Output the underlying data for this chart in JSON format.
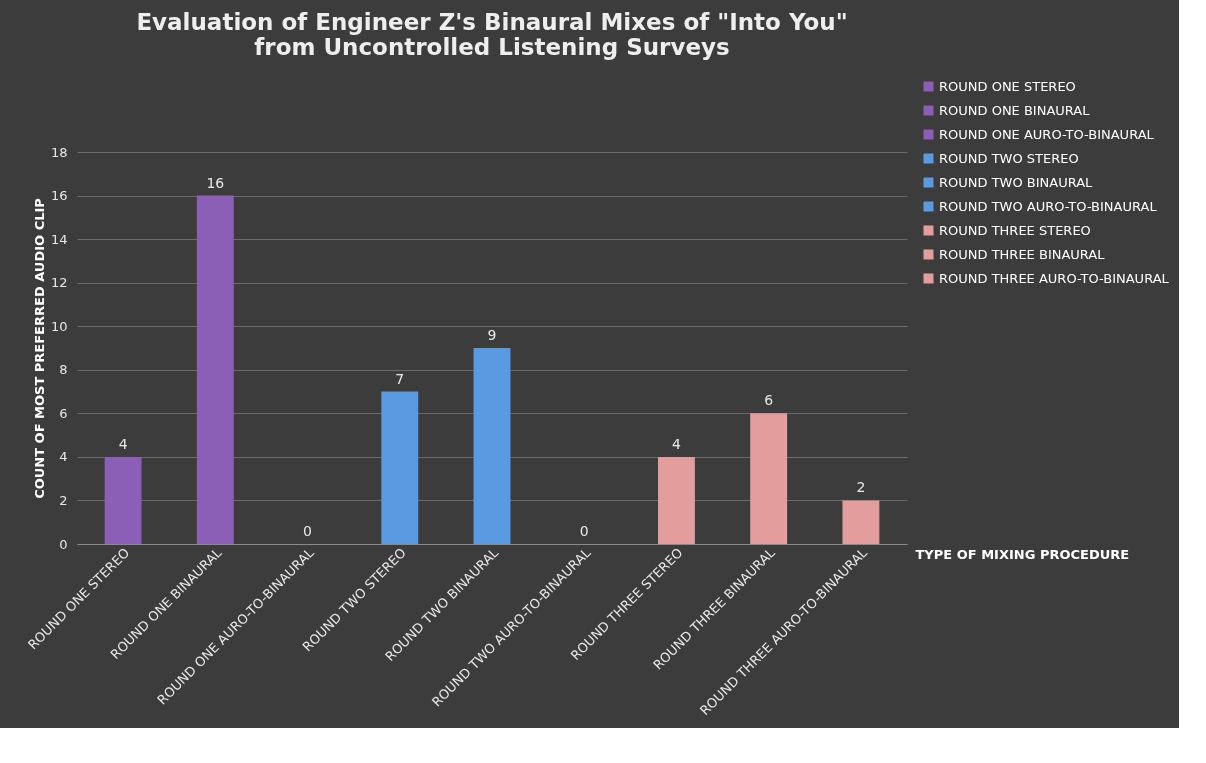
{
  "chart_data": {
    "type": "bar",
    "title": [
      "Evaluation of Engineer Z's Binaural Mixes of \"Into You\"",
      "from Uncontrolled Listening Surveys"
    ],
    "xlabel": "TYPE OF MIXING PROCEDURE",
    "ylabel": "COUNT OF MOST PREFERRED AUDIO CLIP",
    "categories": [
      "ROUND ONE STEREO",
      "ROUND ONE BINAURAL",
      "ROUND ONE AURO-TO-BINAURAL",
      "ROUND TWO STEREO",
      "ROUND TWO BINAURAL",
      "ROUND TWO AURO-TO-BINAURAL",
      "ROUND THREE STEREO",
      "ROUND THREE BINAURAL",
      "ROUND THREE AURO-TO-BINAURAL"
    ],
    "stacked": true,
    "series": [
      {
        "name": "ROUND ONE STEREO",
        "color": "#8b5fb5",
        "values": [
          4,
          null,
          null,
          null,
          null,
          null,
          null,
          null,
          null
        ]
      },
      {
        "name": "ROUND ONE BINAURAL",
        "color": "#8b5fb5",
        "values": [
          null,
          16,
          null,
          null,
          null,
          null,
          null,
          null,
          null
        ]
      },
      {
        "name": "ROUND ONE AURO-TO-BINAURAL",
        "color": "#8b5fb5",
        "values": [
          null,
          null,
          0,
          null,
          null,
          null,
          null,
          null,
          null
        ]
      },
      {
        "name": "ROUND TWO STEREO",
        "color": "#5a9ae0",
        "values": [
          null,
          null,
          null,
          7,
          null,
          null,
          null,
          null,
          null
        ]
      },
      {
        "name": "ROUND TWO BINAURAL",
        "color": "#5a9ae0",
        "values": [
          null,
          null,
          null,
          null,
          9,
          null,
          null,
          null,
          null
        ]
      },
      {
        "name": "ROUND TWO AURO-TO-BINAURAL",
        "color": "#5a9ae0",
        "values": [
          null,
          null,
          null,
          null,
          null,
          0,
          null,
          null,
          null
        ]
      },
      {
        "name": "ROUND THREE STEREO",
        "color": "#e49d9d",
        "values": [
          null,
          null,
          null,
          null,
          null,
          null,
          4,
          null,
          null
        ]
      },
      {
        "name": "ROUND THREE BINAURAL",
        "color": "#e49d9d",
        "values": [
          null,
          null,
          null,
          null,
          null,
          null,
          null,
          6,
          null
        ]
      },
      {
        "name": "ROUND THREE AURO-TO-BINAURAL",
        "color": "#e49d9d",
        "values": [
          null,
          null,
          null,
          null,
          null,
          null,
          null,
          null,
          2
        ]
      }
    ],
    "ylim": [
      0,
      18
    ],
    "yticks": [
      0,
      2,
      4,
      6,
      8,
      10,
      12,
      14,
      16,
      18
    ],
    "grid": "y",
    "legend": "top right",
    "data_labels": true
  }
}
